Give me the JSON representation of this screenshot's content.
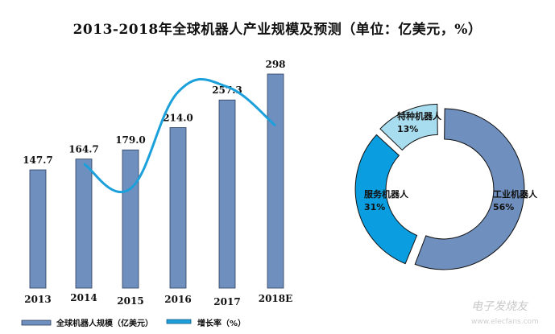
{
  "chart_data": [
    {
      "type": "bar",
      "title": "2013-2018年全球机器人产业规模及预测（单位：亿美元，%）",
      "categories": [
        "2013",
        "2014",
        "2015",
        "2016",
        "2017",
        "2018E"
      ],
      "series": [
        {
          "name": "全球机器人规模（亿美元）",
          "values": [
            147.7,
            164.7,
            179.0,
            214.0,
            257.3,
            298
          ],
          "labels": [
            "147.7",
            "164.7",
            "179.0",
            "214.0",
            "257.3",
            "298"
          ],
          "color": "#6f8fbf"
        },
        {
          "name": "增长率（%）",
          "type": "line",
          "values": [
            null,
            11.5,
            8.7,
            19.6,
            20.2,
            15.8
          ],
          "color": "#1ba0dc"
        }
      ],
      "legend": "bottom"
    },
    {
      "type": "pie",
      "style": "donut",
      "slices": [
        {
          "label": "工业机器人",
          "value": 56,
          "text": "56%",
          "color": "#6f8fbf"
        },
        {
          "label": "服务机器人",
          "value": 31,
          "text": "31%",
          "color": "#0a9ee0"
        },
        {
          "label": "特种机器人",
          "value": 13,
          "text": "13%",
          "color": "#a8dcef"
        }
      ]
    }
  ],
  "watermark": "电子发烧友 www.elecfans.com"
}
